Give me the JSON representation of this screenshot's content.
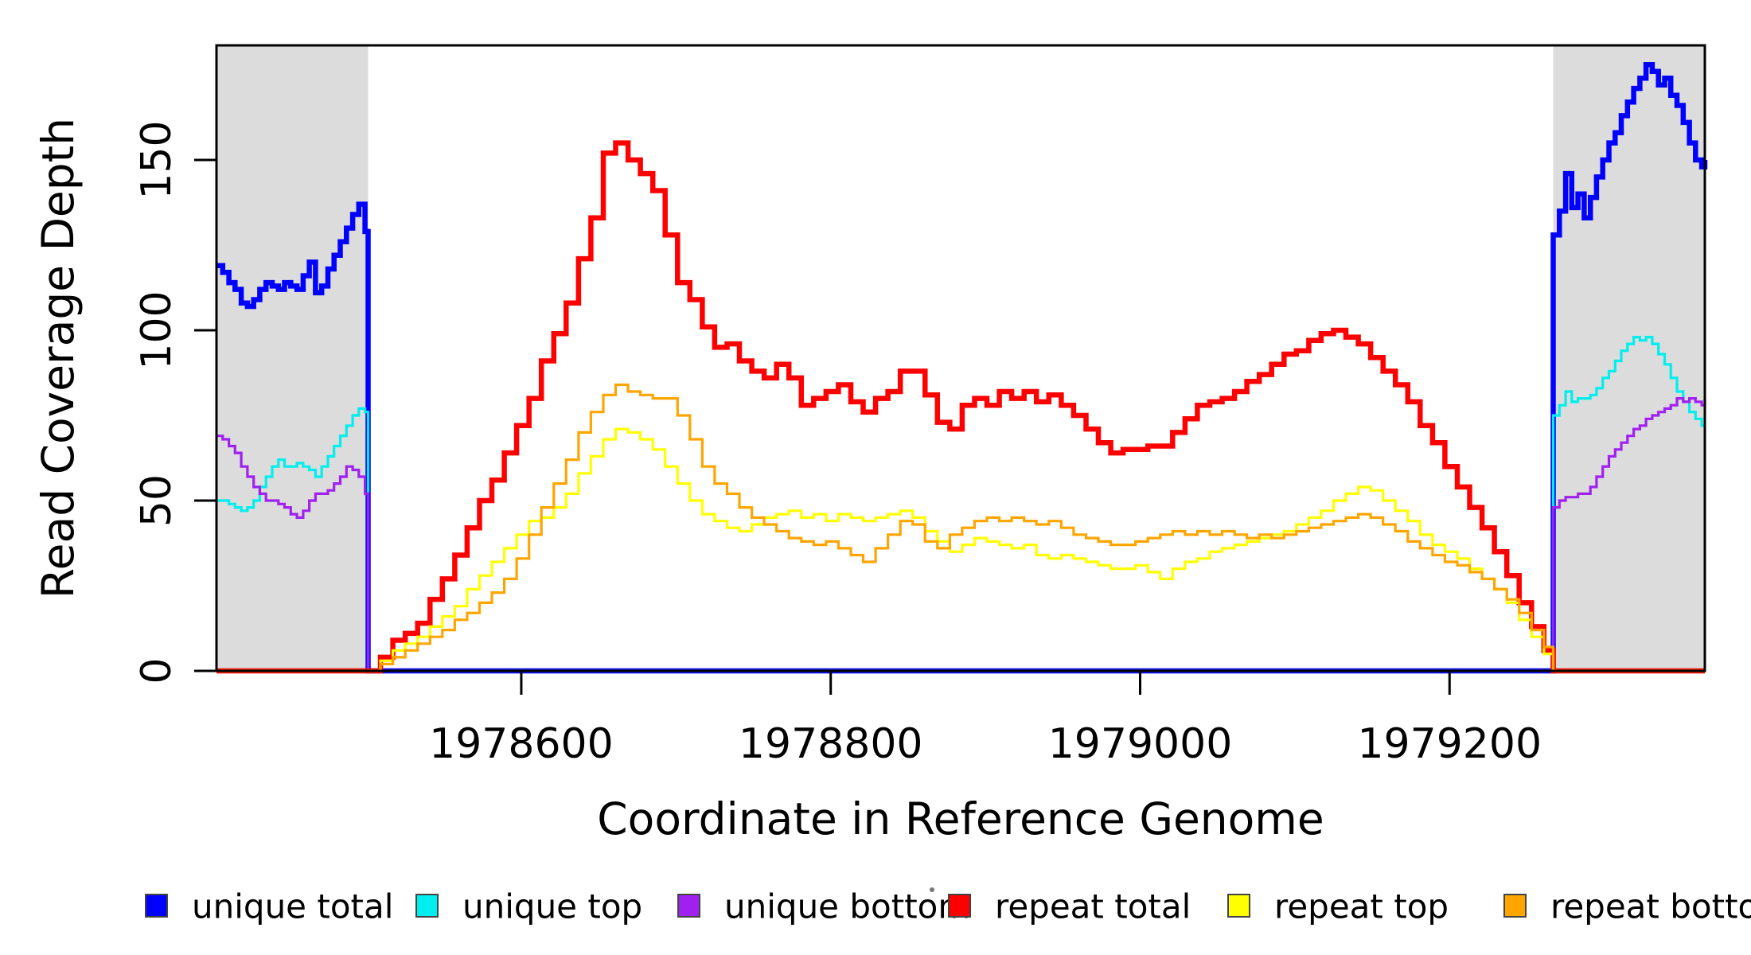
{
  "chart_data": {
    "type": "line",
    "line_style": "step-after",
    "title": "",
    "xlabel": "Coordinate in Reference Genome",
    "ylabel": "Read Coverage Depth",
    "xlim": [
      1978403,
      1979365
    ],
    "ylim": [
      0,
      182
    ],
    "x_ticks": [
      1978600,
      1978800,
      1979000,
      1979200
    ],
    "y_ticks": [
      0,
      50,
      100,
      150
    ],
    "grid": false,
    "legend_position": "bottom",
    "background_color": "#ffffff",
    "shaded_region_color": "#dcdcdc",
    "shaded_regions": [
      {
        "name": "unique-flank-left",
        "x_start": 1978403,
        "x_end": 1978501
      },
      {
        "name": "unique-flank-right",
        "x_start": 1979267,
        "x_end": 1979365
      }
    ],
    "series": [
      {
        "name": "unique total",
        "color": "#0000ff",
        "width": 6.5,
        "runs": [
          {
            "x0": 1978403,
            "dx": 4,
            "v": [
              119,
              117,
              114,
              112,
              108,
              107,
              109,
              112,
              114,
              113,
              112,
              114,
              113,
              112,
              116,
              120,
              111,
              113,
              118,
              122,
              126,
              130,
              134,
              137,
              129
            ]
          },
          {
            "pts": [
              [
                1978501,
                0
              ],
              [
                1979266,
                0
              ]
            ]
          },
          {
            "x0": 1979267,
            "dx": 4,
            "v": [
              128,
              135,
              146,
              136,
              140,
              133,
              139,
              145,
              150,
              155,
              158,
              163,
              167,
              171,
              174,
              178,
              176,
              172,
              174,
              169,
              166,
              161,
              155,
              150,
              148
            ]
          },
          {
            "pts": [
              [
                1979365,
                150
              ]
            ]
          }
        ]
      },
      {
        "name": "unique top",
        "color": "#00eeee",
        "width": 3.2,
        "runs": [
          {
            "x0": 1978403,
            "dx": 4,
            "v": [
              50,
              50,
              49,
              48,
              47,
              48,
              50,
              54,
              57,
              60,
              62,
              60,
              60,
              61,
              60,
              59,
              57,
              60,
              63,
              66,
              69,
              72,
              75,
              77,
              76
            ]
          },
          {
            "pts": [
              [
                1978501,
                0
              ],
              [
                1979266,
                0
              ]
            ]
          },
          {
            "x0": 1979267,
            "dx": 4,
            "v": [
              75,
              78,
              82,
              79,
              80,
              80,
              81,
              83,
              86,
              88,
              91,
              94,
              96,
              98,
              97,
              98,
              96,
              93,
              90,
              86,
              82,
              79,
              76,
              74,
              72
            ]
          },
          {
            "pts": [
              [
                1979365,
                72
              ]
            ]
          }
        ]
      },
      {
        "name": "unique bottom",
        "color": "#a020f0",
        "width": 3.2,
        "runs": [
          {
            "x0": 1978403,
            "dx": 4,
            "v": [
              69,
              68,
              66,
              64,
              60,
              57,
              54,
              52,
              50,
              50,
              49,
              48,
              46,
              45,
              47,
              50,
              52,
              52,
              53,
              55,
              57,
              60,
              59,
              57,
              52
            ]
          },
          {
            "pts": [
              [
                1978501,
                0
              ],
              [
                1979266,
                0
              ]
            ]
          },
          {
            "x0": 1979267,
            "dx": 4,
            "v": [
              48,
              50,
              51,
              51,
              52,
              52,
              54,
              57,
              60,
              63,
              65,
              67,
              69,
              71,
              72,
              74,
              75,
              76,
              77,
              78,
              80,
              79,
              80,
              79,
              78
            ]
          },
          {
            "pts": [
              [
                1979365,
                80
              ]
            ]
          }
        ]
      },
      {
        "name": "repeat total",
        "color": "#ff0000",
        "width": 6.5,
        "runs": [
          {
            "pts": [
              [
                1978403,
                0
              ]
            ]
          },
          {
            "x0": 1978501,
            "dx": 8,
            "v": [
              0,
              4,
              9,
              11,
              14,
              21,
              27,
              34,
              42,
              50,
              56,
              64,
              72,
              80,
              91,
              99,
              108,
              121,
              133,
              152,
              155,
              150,
              146,
              141,
              128,
              114,
              109,
              101,
              95,
              96,
              91,
              88,
              86,
              90,
              86,
              78,
              80,
              82,
              84,
              79,
              76,
              80,
              82,
              88,
              88,
              81,
              73,
              71,
              78,
              80,
              78,
              82,
              80,
              82,
              79,
              81,
              78,
              75,
              71,
              67,
              64,
              65,
              65,
              66,
              66,
              70,
              74,
              78,
              79,
              80,
              82,
              85,
              87,
              90,
              93,
              94,
              97,
              99,
              100,
              98,
              96,
              92,
              88,
              84,
              79,
              72,
              67,
              60,
              54,
              48,
              42,
              35,
              28,
              20,
              13,
              6
            ]
          },
          {
            "pts": [
              [
                1979267,
                0
              ],
              [
                1979365,
                0
              ]
            ]
          }
        ]
      },
      {
        "name": "repeat top",
        "color": "#ffff00",
        "width": 3.2,
        "runs": [
          {
            "pts": [
              [
                1978403,
                0
              ]
            ]
          },
          {
            "x0": 1978501,
            "dx": 8,
            "v": [
              0,
              3,
              6,
              8,
              10,
              13,
              16,
              19,
              24,
              28,
              32,
              36,
              40,
              44,
              45,
              48,
              52,
              58,
              63,
              68,
              71,
              70,
              68,
              65,
              60,
              55,
              50,
              46,
              44,
              42,
              41,
              43,
              45,
              46,
              47,
              45,
              46,
              44,
              46,
              45,
              44,
              45,
              46,
              47,
              45,
              41,
              38,
              35,
              37,
              39,
              38,
              37,
              36,
              37,
              34,
              33,
              34,
              33,
              32,
              31,
              30,
              30,
              31,
              29,
              27,
              30,
              32,
              33,
              35,
              36,
              37,
              38,
              39,
              40,
              41,
              43,
              45,
              47,
              50,
              52,
              54,
              53,
              50,
              47,
              44,
              40,
              37,
              35,
              33,
              30,
              27,
              24,
              20,
              15,
              10,
              5
            ]
          },
          {
            "pts": [
              [
                1979267,
                0
              ],
              [
                1979365,
                0
              ]
            ]
          }
        ]
      },
      {
        "name": "repeat bottom",
        "color": "#ffa500",
        "width": 3.2,
        "runs": [
          {
            "pts": [
              [
                1978403,
                0
              ]
            ]
          },
          {
            "x0": 1978501,
            "dx": 8,
            "v": [
              0,
              2,
              4,
              6,
              8,
              10,
              12,
              15,
              17,
              20,
              23,
              27,
              33,
              40,
              48,
              55,
              62,
              70,
              76,
              81,
              84,
              82,
              81,
              80,
              80,
              75,
              68,
              60,
              55,
              52,
              48,
              45,
              43,
              41,
              39,
              38,
              37,
              38,
              36,
              34,
              32,
              36,
              40,
              44,
              43,
              38,
              36,
              40,
              42,
              44,
              45,
              44,
              45,
              44,
              43,
              44,
              42,
              40,
              39,
              38,
              37,
              37,
              38,
              39,
              40,
              41,
              40,
              41,
              40,
              41,
              40,
              39,
              40,
              39,
              40,
              41,
              42,
              43,
              44,
              45,
              46,
              45,
              43,
              41,
              38,
              36,
              34,
              32,
              31,
              29,
              27,
              24,
              21,
              17,
              12,
              7
            ]
          },
          {
            "pts": [
              [
                1979267,
                0
              ],
              [
                1979365,
                0
              ]
            ]
          }
        ]
      }
    ],
    "legend": {
      "items": [
        {
          "label": "unique total",
          "color": "#0000ff"
        },
        {
          "label": "unique top",
          "color": "#00eeee"
        },
        {
          "label": "unique bottom",
          "color": "#a020f0"
        },
        {
          "label": "repeat total",
          "color": "#ff0000"
        },
        {
          "label": "repeat top",
          "color": "#ffff00"
        },
        {
          "label": "repeat bottom",
          "color": "#ffa500"
        }
      ]
    }
  }
}
